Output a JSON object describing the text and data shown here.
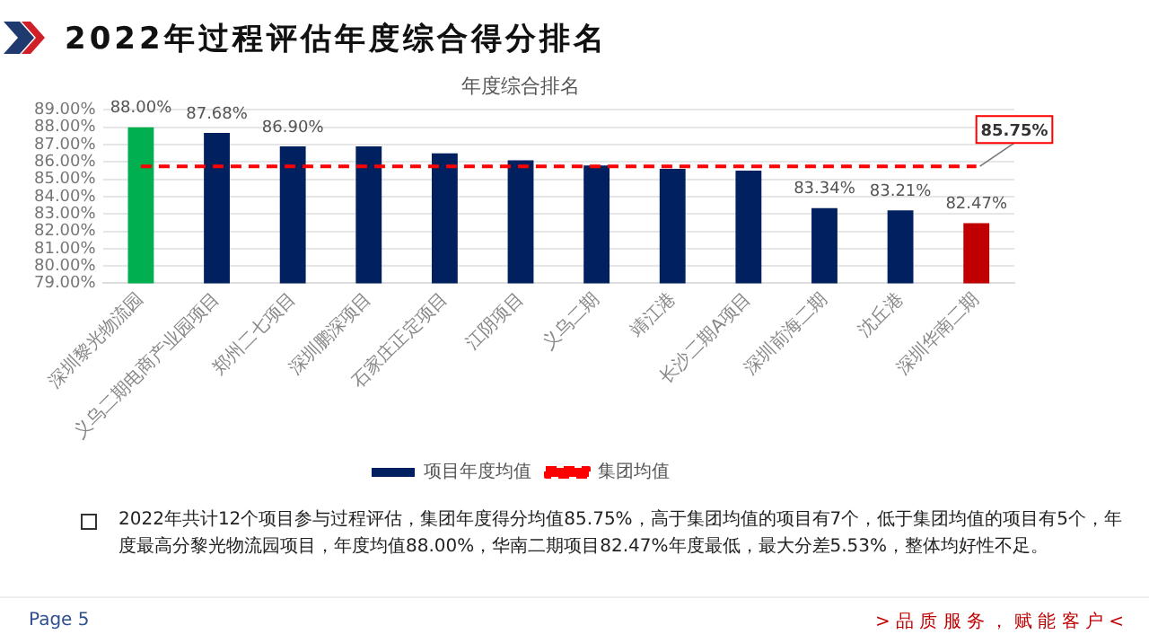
{
  "chart_data": {
    "type": "bar",
    "title": "2022年过程评估年度综合得分排名",
    "subtitle": "年度综合排名",
    "categories": [
      "深圳黎光物流园",
      "义乌二期电商产业园项目",
      "郑州二七项目",
      "深圳鹏深项目",
      "石家庄正定项目",
      "江阴项目",
      "义乌二期",
      "靖江港",
      "长沙二期A项目",
      "深圳前海二期",
      "沈丘港",
      "深圳华南二期"
    ],
    "series": [
      {
        "name": "项目年度均值",
        "color": "#002060",
        "colors": [
          "#00b050",
          "#002060",
          "#002060",
          "#002060",
          "#002060",
          "#002060",
          "#002060",
          "#002060",
          "#002060",
          "#002060",
          "#002060",
          "#c00000"
        ],
        "values": [
          88.0,
          87.68,
          86.9,
          86.9,
          86.5,
          86.1,
          85.8,
          85.6,
          85.5,
          83.34,
          83.21,
          82.47
        ],
        "value_labels": [
          "88.00%",
          "87.68%",
          "86.90%",
          null,
          null,
          null,
          null,
          null,
          null,
          "83.34%",
          "83.21%",
          "82.47%"
        ]
      },
      {
        "name": "集团均值",
        "type": "line",
        "color": "#ff0000",
        "line_style": "dashed",
        "marker": "none",
        "values": [
          85.75,
          85.75,
          85.75,
          85.75,
          85.75,
          85.75,
          85.75,
          85.75,
          85.75,
          85.75,
          85.75,
          85.75
        ],
        "value_labels": [
          null,
          null,
          null,
          null,
          null,
          null,
          null,
          null,
          null,
          null,
          null,
          "85.75%"
        ]
      }
    ],
    "ylim": [
      79,
      89
    ],
    "yticks": [
      {
        "value": 79,
        "label": "79.00%"
      },
      {
        "value": 80,
        "label": "80.00%"
      },
      {
        "value": 81,
        "label": "81.00%"
      },
      {
        "value": 82,
        "label": "82.00%"
      },
      {
        "value": 83,
        "label": "83.00%"
      },
      {
        "value": 84,
        "label": "84.00%"
      },
      {
        "value": 85,
        "label": "85.00%"
      },
      {
        "value": 86,
        "label": "86.00%"
      },
      {
        "value": 87,
        "label": "87.00%"
      },
      {
        "value": 88,
        "label": "88.00%"
      },
      {
        "value": 89,
        "label": "89.00%"
      }
    ],
    "grid": "y",
    "legend": "bottom",
    "annotations": [
      "2022年共计12个项目参与过程评估，集团年度得分均值85.75%，高于集团均值的项目有7个，低于集团均值的项目有5个，年度最高分黎光物流园项目，年度均值88.00%，华南二期项目82.47%年度最低，最大分差5.53%，整体均好性不足。",
      "Page 5",
      "> 品 质 服 务 ， 赋 能 客 户 <"
    ]
  }
}
